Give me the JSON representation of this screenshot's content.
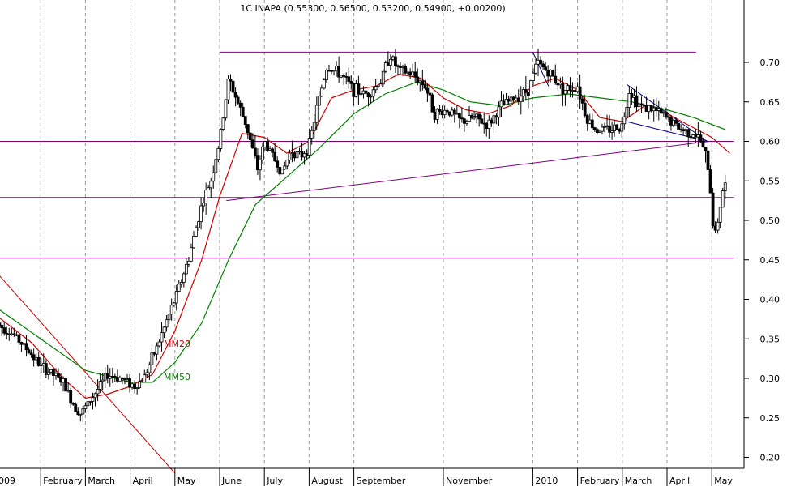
{
  "chart_data": {
    "type": "candlestick",
    "title": "1C INAPA (0.55300, 0.56500, 0.53200, 0.54900, +0.00200)",
    "y_axis": {
      "side": "right",
      "ylim": [
        0.18,
        0.735
      ],
      "ticks": [
        "0.70",
        "0.65",
        "0.60",
        "0.55",
        "0.50",
        "0.45",
        "0.40",
        "0.35",
        "0.30",
        "0.25",
        "0.20"
      ]
    },
    "x_axis": {
      "labels": [
        {
          "text": "009",
          "month": 0
        },
        {
          "text": "February",
          "month": 1
        },
        {
          "text": "March",
          "month": 2
        },
        {
          "text": "April",
          "month": 3
        },
        {
          "text": "May",
          "month": 4
        },
        {
          "text": "June",
          "month": 5
        },
        {
          "text": "July",
          "month": 6
        },
        {
          "text": "August",
          "month": 7
        },
        {
          "text": "September",
          "month": 8
        },
        {
          "text": "November",
          "month": 10
        },
        {
          "text": "2010",
          "month": 12
        },
        {
          "text": "February",
          "month": 13
        },
        {
          "text": "March",
          "month": 14
        },
        {
          "text": "April",
          "month": 15
        },
        {
          "text": "May",
          "month": 16
        }
      ]
    },
    "grid": "vertical dashed",
    "colors": {
      "price": "#000000",
      "mm20": "#cc0000",
      "mm50": "#008000",
      "support": "#800080",
      "trend": "#000080"
    },
    "annotations": [
      {
        "text": "MM20",
        "color": "#cc0000",
        "month": 3.75,
        "y": 0.34
      },
      {
        "text": "MM50",
        "color": "#008000",
        "month": 3.75,
        "y": 0.298
      }
    ],
    "horizontal_lines": [
      {
        "y": 0.713,
        "from_month": 5.0,
        "to_month": 15.65
      },
      {
        "y": 0.6,
        "from_month": 0,
        "to_month": 16.5
      },
      {
        "y": 0.529,
        "from_month": 0,
        "to_month": 16.5
      },
      {
        "y": 0.452,
        "from_month": 0,
        "to_month": 16.5
      }
    ],
    "trend_lines": [
      {
        "color": "#800080",
        "points": [
          [
            5.15,
            0.525
          ],
          [
            15.95,
            0.6
          ]
        ]
      },
      {
        "color": "#cc0000",
        "points": [
          [
            0,
            0.435
          ],
          [
            4.0,
            0.18
          ]
        ]
      },
      {
        "color": "#000080",
        "points": [
          [
            12.0,
            0.713
          ],
          [
            12.35,
            0.67
          ]
        ]
      },
      {
        "color": "#000080",
        "points": [
          [
            14.1,
            0.672
          ],
          [
            15.9,
            0.6
          ]
        ]
      },
      {
        "color": "#000080",
        "points": [
          [
            14.1,
            0.625
          ],
          [
            15.9,
            0.6
          ]
        ]
      }
    ],
    "price_series": [
      {
        "month": 0.0,
        "value": 0.37
      },
      {
        "month": 0.4,
        "value": 0.355
      },
      {
        "month": 0.8,
        "value": 0.33
      },
      {
        "month": 1.0,
        "value": 0.315
      },
      {
        "month": 1.2,
        "value": 0.308
      },
      {
        "month": 1.5,
        "value": 0.295
      },
      {
        "month": 1.7,
        "value": 0.27
      },
      {
        "month": 1.9,
        "value": 0.255
      },
      {
        "month": 2.2,
        "value": 0.28
      },
      {
        "month": 2.5,
        "value": 0.305
      },
      {
        "month": 2.8,
        "value": 0.3
      },
      {
        "month": 3.1,
        "value": 0.29
      },
      {
        "month": 3.3,
        "value": 0.3
      },
      {
        "month": 3.6,
        "value": 0.34
      },
      {
        "month": 3.8,
        "value": 0.37
      },
      {
        "month": 4.0,
        "value": 0.4
      },
      {
        "month": 4.3,
        "value": 0.45
      },
      {
        "month": 4.6,
        "value": 0.52
      },
      {
        "month": 4.8,
        "value": 0.55
      },
      {
        "month": 5.0,
        "value": 0.6
      },
      {
        "month": 5.2,
        "value": 0.68
      },
      {
        "month": 5.4,
        "value": 0.65
      },
      {
        "month": 5.6,
        "value": 0.62
      },
      {
        "month": 5.85,
        "value": 0.565
      },
      {
        "month": 6.0,
        "value": 0.6
      },
      {
        "month": 6.2,
        "value": 0.58
      },
      {
        "month": 6.4,
        "value": 0.56
      },
      {
        "month": 6.6,
        "value": 0.59
      },
      {
        "month": 6.8,
        "value": 0.58
      },
      {
        "month": 7.0,
        "value": 0.595
      },
      {
        "month": 7.2,
        "value": 0.65
      },
      {
        "month": 7.4,
        "value": 0.695
      },
      {
        "month": 7.7,
        "value": 0.685
      },
      {
        "month": 8.0,
        "value": 0.665
      },
      {
        "month": 8.3,
        "value": 0.66
      },
      {
        "month": 8.6,
        "value": 0.675
      },
      {
        "month": 8.8,
        "value": 0.71
      },
      {
        "month": 9.0,
        "value": 0.69
      },
      {
        "month": 9.3,
        "value": 0.685
      },
      {
        "month": 9.6,
        "value": 0.67
      },
      {
        "month": 9.8,
        "value": 0.635
      },
      {
        "month": 10.1,
        "value": 0.64
      },
      {
        "month": 10.4,
        "value": 0.625
      },
      {
        "month": 10.7,
        "value": 0.63
      },
      {
        "month": 11.0,
        "value": 0.62
      },
      {
        "month": 11.3,
        "value": 0.645
      },
      {
        "month": 11.6,
        "value": 0.655
      },
      {
        "month": 11.9,
        "value": 0.665
      },
      {
        "month": 12.1,
        "value": 0.7
      },
      {
        "month": 12.4,
        "value": 0.685
      },
      {
        "month": 12.7,
        "value": 0.665
      },
      {
        "month": 13.0,
        "value": 0.67
      },
      {
        "month": 13.2,
        "value": 0.63
      },
      {
        "month": 13.4,
        "value": 0.615
      },
      {
        "month": 13.7,
        "value": 0.615
      },
      {
        "month": 14.0,
        "value": 0.62
      },
      {
        "month": 14.15,
        "value": 0.665
      },
      {
        "month": 14.4,
        "value": 0.645
      },
      {
        "month": 14.7,
        "value": 0.64
      },
      {
        "month": 15.0,
        "value": 0.63
      },
      {
        "month": 15.3,
        "value": 0.615
      },
      {
        "month": 15.6,
        "value": 0.61
      },
      {
        "month": 15.75,
        "value": 0.6
      },
      {
        "month": 15.9,
        "value": 0.575
      },
      {
        "month": 16.0,
        "value": 0.52
      },
      {
        "month": 16.05,
        "value": 0.475
      },
      {
        "month": 16.15,
        "value": 0.505
      },
      {
        "month": 16.25,
        "value": 0.54
      },
      {
        "month": 16.35,
        "value": 0.549
      }
    ],
    "mm20": [
      {
        "month": 0.0,
        "value": 0.38
      },
      {
        "month": 0.8,
        "value": 0.345
      },
      {
        "month": 1.5,
        "value": 0.3
      },
      {
        "month": 2.0,
        "value": 0.275
      },
      {
        "month": 2.5,
        "value": 0.28
      },
      {
        "month": 3.0,
        "value": 0.29
      },
      {
        "month": 3.5,
        "value": 0.305
      },
      {
        "month": 4.0,
        "value": 0.36
      },
      {
        "month": 4.6,
        "value": 0.45
      },
      {
        "month": 5.0,
        "value": 0.53
      },
      {
        "month": 5.5,
        "value": 0.61
      },
      {
        "month": 6.0,
        "value": 0.605
      },
      {
        "month": 6.5,
        "value": 0.585
      },
      {
        "month": 7.0,
        "value": 0.6
      },
      {
        "month": 7.5,
        "value": 0.655
      },
      {
        "month": 8.0,
        "value": 0.665
      },
      {
        "month": 8.5,
        "value": 0.67
      },
      {
        "month": 9.0,
        "value": 0.685
      },
      {
        "month": 9.5,
        "value": 0.68
      },
      {
        "month": 10.0,
        "value": 0.655
      },
      {
        "month": 10.5,
        "value": 0.64
      },
      {
        "month": 11.0,
        "value": 0.635
      },
      {
        "month": 11.5,
        "value": 0.645
      },
      {
        "month": 12.0,
        "value": 0.67
      },
      {
        "month": 12.5,
        "value": 0.68
      },
      {
        "month": 13.0,
        "value": 0.665
      },
      {
        "month": 13.5,
        "value": 0.63
      },
      {
        "month": 14.0,
        "value": 0.625
      },
      {
        "month": 14.5,
        "value": 0.645
      },
      {
        "month": 15.0,
        "value": 0.635
      },
      {
        "month": 15.5,
        "value": 0.62
      },
      {
        "month": 16.0,
        "value": 0.605
      },
      {
        "month": 16.4,
        "value": 0.585
      }
    ],
    "mm50": [
      {
        "month": 0.0,
        "value": 0.39
      },
      {
        "month": 1.0,
        "value": 0.35
      },
      {
        "month": 2.0,
        "value": 0.31
      },
      {
        "month": 3.0,
        "value": 0.295
      },
      {
        "month": 3.5,
        "value": 0.295
      },
      {
        "month": 4.0,
        "value": 0.32
      },
      {
        "month": 4.6,
        "value": 0.37
      },
      {
        "month": 5.2,
        "value": 0.45
      },
      {
        "month": 5.8,
        "value": 0.52
      },
      {
        "month": 6.5,
        "value": 0.555
      },
      {
        "month": 7.2,
        "value": 0.59
      },
      {
        "month": 8.0,
        "value": 0.635
      },
      {
        "month": 8.7,
        "value": 0.66
      },
      {
        "month": 9.4,
        "value": 0.675
      },
      {
        "month": 10.0,
        "value": 0.665
      },
      {
        "month": 10.6,
        "value": 0.65
      },
      {
        "month": 11.3,
        "value": 0.645
      },
      {
        "month": 12.0,
        "value": 0.655
      },
      {
        "month": 12.8,
        "value": 0.66
      },
      {
        "month": 13.5,
        "value": 0.655
      },
      {
        "month": 14.2,
        "value": 0.65
      },
      {
        "month": 15.0,
        "value": 0.64
      },
      {
        "month": 15.6,
        "value": 0.63
      },
      {
        "month": 16.3,
        "value": 0.615
      }
    ]
  }
}
